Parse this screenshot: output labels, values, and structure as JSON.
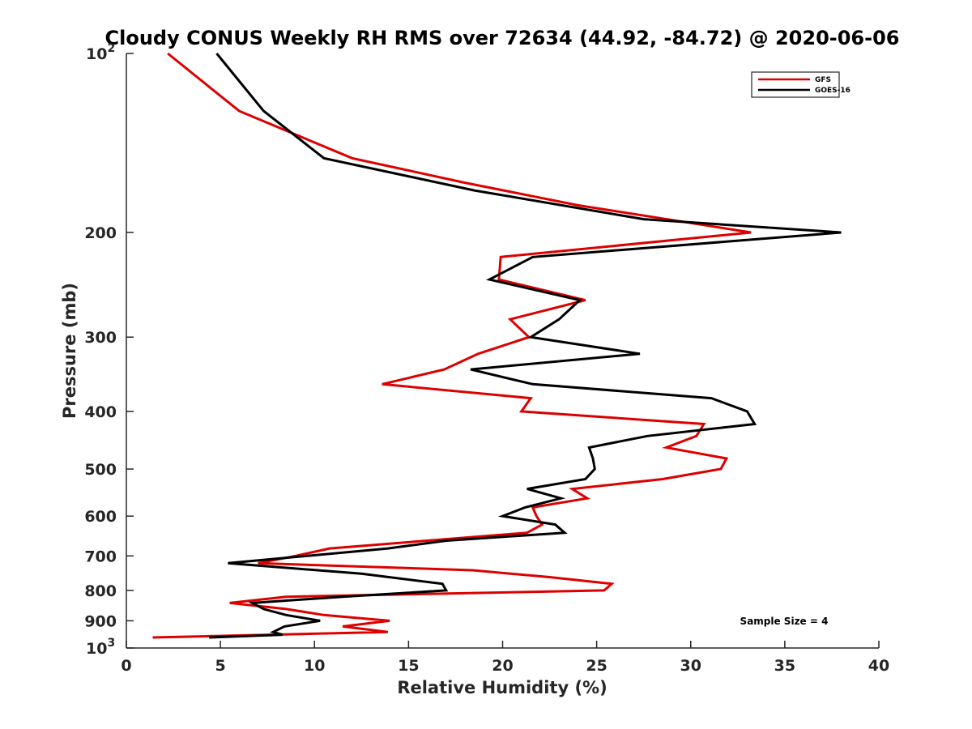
{
  "chart_data": {
    "type": "line",
    "title": "Cloudy CONUS Weekly RH RMS over 72634 (44.92, -84.72) @ 2020-06-06",
    "xlabel": "Relative Humidity (%)",
    "ylabel": "Pressure (mb)",
    "xlim": [
      0,
      40
    ],
    "ylim": [
      100,
      1000
    ],
    "yscale": "log",
    "y_reversed": true,
    "x_ticks": [
      "0",
      "5",
      "10",
      "15",
      "20",
      "25",
      "30",
      "35",
      "40"
    ],
    "y_ticks": [
      {
        "value": 100,
        "label": "10",
        "sup": "2"
      },
      {
        "value": 200,
        "label": "200"
      },
      {
        "value": 300,
        "label": "300"
      },
      {
        "value": 400,
        "label": "400"
      },
      {
        "value": 500,
        "label": "500"
      },
      {
        "value": 600,
        "label": "600"
      },
      {
        "value": 700,
        "label": "700"
      },
      {
        "value": 800,
        "label": "800"
      },
      {
        "value": 900,
        "label": "900"
      },
      {
        "value": 1000,
        "label": "10",
        "sup": "3"
      }
    ],
    "grid": false,
    "legend_position": "top-right",
    "annotation": "Sample Size = 4",
    "series": [
      {
        "name": "GFS",
        "color": "#dd0000",
        "points": [
          [
            2.2,
            100
          ],
          [
            6.0,
            125
          ],
          [
            12.0,
            150
          ],
          [
            18.0,
            165
          ],
          [
            24.0,
            180
          ],
          [
            33.2,
            200
          ],
          [
            19.9,
            220
          ],
          [
            19.8,
            240
          ],
          [
            24.4,
            260
          ],
          [
            20.4,
            280
          ],
          [
            21.4,
            300
          ],
          [
            18.7,
            320
          ],
          [
            16.9,
            340
          ],
          [
            13.6,
            360
          ],
          [
            21.5,
            380
          ],
          [
            21.0,
            400
          ],
          [
            30.7,
            420
          ],
          [
            30.3,
            440
          ],
          [
            28.7,
            460
          ],
          [
            31.9,
            480
          ],
          [
            31.6,
            500
          ],
          [
            28.5,
            520
          ],
          [
            23.7,
            540
          ],
          [
            24.5,
            560
          ],
          [
            21.6,
            580
          ],
          [
            21.8,
            600
          ],
          [
            22.1,
            620
          ],
          [
            21.3,
            640
          ],
          [
            10.8,
            680
          ],
          [
            9.0,
            700
          ],
          [
            7.0,
            720
          ],
          [
            18.4,
            740
          ],
          [
            22.5,
            760
          ],
          [
            25.8,
            780
          ],
          [
            25.4,
            800
          ],
          [
            8.5,
            820
          ],
          [
            5.5,
            840
          ],
          [
            8.5,
            860
          ],
          [
            10.5,
            880
          ],
          [
            14.0,
            900
          ],
          [
            11.5,
            920
          ],
          [
            13.9,
            940
          ],
          [
            1.4,
            960
          ]
        ]
      },
      {
        "name": "GOES-16",
        "color": "#000000",
        "points": [
          [
            4.8,
            100
          ],
          [
            7.3,
            125
          ],
          [
            10.5,
            150
          ],
          [
            18.5,
            170
          ],
          [
            27.5,
            190
          ],
          [
            38.0,
            200
          ],
          [
            21.6,
            220
          ],
          [
            19.3,
            240
          ],
          [
            24.1,
            260
          ],
          [
            23.0,
            280
          ],
          [
            21.5,
            300
          ],
          [
            27.3,
            320
          ],
          [
            18.3,
            340
          ],
          [
            21.6,
            360
          ],
          [
            31.1,
            380
          ],
          [
            33.0,
            400
          ],
          [
            33.4,
            420
          ],
          [
            27.7,
            440
          ],
          [
            24.6,
            460
          ],
          [
            24.8,
            480
          ],
          [
            24.9,
            500
          ],
          [
            24.4,
            520
          ],
          [
            21.3,
            540
          ],
          [
            23.1,
            560
          ],
          [
            21.2,
            580
          ],
          [
            20.0,
            600
          ],
          [
            22.8,
            620
          ],
          [
            23.3,
            640
          ],
          [
            17.0,
            660
          ],
          [
            13.9,
            680
          ],
          [
            5.4,
            720
          ],
          [
            12.5,
            750
          ],
          [
            16.8,
            780
          ],
          [
            17.0,
            800
          ],
          [
            11.5,
            820
          ],
          [
            6.7,
            840
          ],
          [
            7.3,
            860
          ],
          [
            8.5,
            880
          ],
          [
            10.3,
            900
          ],
          [
            8.4,
            920
          ],
          [
            7.8,
            940
          ],
          [
            8.3,
            950
          ],
          [
            4.4,
            960
          ]
        ]
      }
    ]
  }
}
